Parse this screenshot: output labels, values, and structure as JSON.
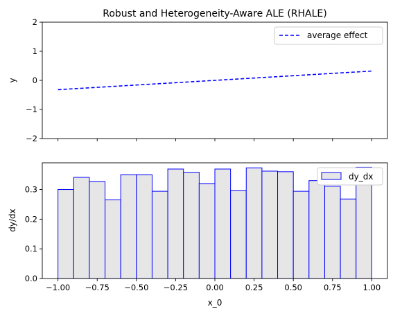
{
  "chart_data": [
    {
      "type": "line",
      "title": "Robust and Heterogeneity-Aware ALE (RHALE)",
      "xlabel": "",
      "ylabel": "y",
      "xlim": [
        -1.1,
        1.1
      ],
      "ylim": [
        -2,
        2
      ],
      "yticks": [
        -2,
        -1,
        0,
        1,
        2
      ],
      "ytick_labels": [
        "−2",
        "−1",
        "0",
        "1",
        "2"
      ],
      "xtick_labels_shown": false,
      "series": [
        {
          "name": "average effect",
          "style": "dashed",
          "color": "#0000ff",
          "x": [
            -1.0,
            1.0
          ],
          "y": [
            -0.32,
            0.32
          ]
        }
      ],
      "legend": {
        "placement": "top-right",
        "entries": [
          "average effect"
        ]
      }
    },
    {
      "type": "bar",
      "title": "",
      "xlabel": "x_0",
      "ylabel": "dy/dx",
      "xlim": [
        -1.1,
        1.1
      ],
      "ylim": [
        0,
        0.39
      ],
      "xticks": [
        -1.0,
        -0.75,
        -0.5,
        -0.25,
        0.0,
        0.25,
        0.5,
        0.75,
        1.0
      ],
      "xtick_labels": [
        "−1.00",
        "−0.75",
        "−0.50",
        "−0.25",
        "0.00",
        "0.25",
        "0.50",
        "0.75",
        "1.00"
      ],
      "yticks": [
        0.0,
        0.1,
        0.2,
        0.3
      ],
      "ytick_labels": [
        "0.0",
        "0.1",
        "0.2",
        "0.3"
      ],
      "bin_edges": [
        -1.0,
        -0.9,
        -0.8,
        -0.7,
        -0.6,
        -0.5,
        -0.4,
        -0.3,
        -0.2,
        -0.1,
        0.0,
        0.1,
        0.2,
        0.3,
        0.4,
        0.5,
        0.6,
        0.7,
        0.8,
        0.9,
        1.0
      ],
      "series": [
        {
          "name": "dy_dx",
          "fill_color": "#e6e6e6",
          "edge_color": "#0000ff",
          "values": [
            0.3,
            0.341,
            0.327,
            0.265,
            0.35,
            0.35,
            0.294,
            0.369,
            0.358,
            0.32,
            0.369,
            0.297,
            0.373,
            0.362,
            0.36,
            0.294,
            0.33,
            0.311,
            0.268,
            0.375
          ]
        }
      ],
      "legend": {
        "placement": "top-right",
        "entries": [
          "dy_dx"
        ]
      }
    }
  ]
}
